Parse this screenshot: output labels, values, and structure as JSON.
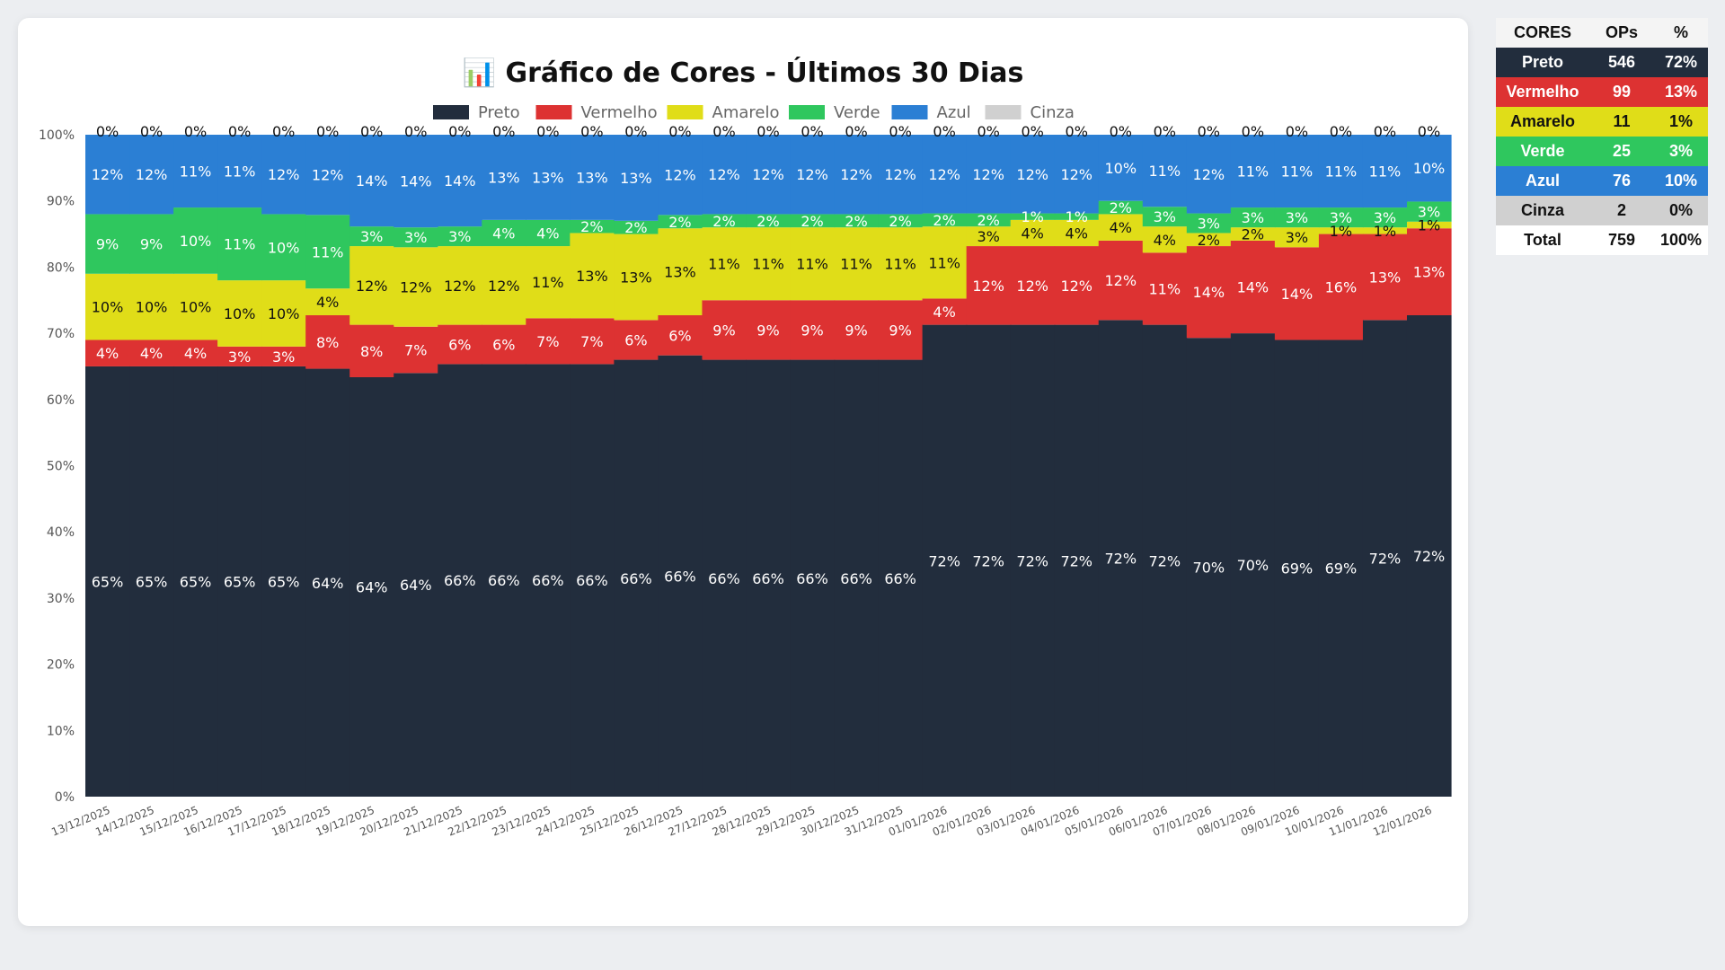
{
  "title": "📊 Gráfico de Cores - Últimos 30 Dias",
  "chart_data": {
    "type": "bar",
    "stacked": true,
    "title": "📊 Gráfico de Cores - Últimos 30 Dias",
    "xlabel": "",
    "ylabel": "",
    "ylim": [
      0,
      100
    ],
    "yticks": [
      "0%",
      "10%",
      "20%",
      "30%",
      "40%",
      "50%",
      "60%",
      "70%",
      "80%",
      "90%",
      "100%"
    ],
    "legend_position": "top",
    "categories": [
      "13/12/2025",
      "14/12/2025",
      "15/12/2025",
      "16/12/2025",
      "17/12/2025",
      "18/12/2025",
      "19/12/2025",
      "20/12/2025",
      "21/12/2025",
      "22/12/2025",
      "23/12/2025",
      "24/12/2025",
      "25/12/2025",
      "26/12/2025",
      "27/12/2025",
      "28/12/2025",
      "29/12/2025",
      "30/12/2025",
      "31/12/2025",
      "01/01/2026",
      "02/01/2026",
      "03/01/2026",
      "04/01/2026",
      "05/01/2026",
      "06/01/2026",
      "07/01/2026",
      "08/01/2026",
      "09/01/2026",
      "10/01/2026",
      "11/01/2026",
      "12/01/2026"
    ],
    "series": [
      {
        "name": "Preto",
        "color": "#222d3d",
        "label_color": "#ffffff",
        "values": [
          65,
          65,
          65,
          65,
          65,
          64,
          64,
          64,
          66,
          66,
          66,
          66,
          66,
          66,
          66,
          66,
          66,
          66,
          66,
          72,
          72,
          72,
          72,
          72,
          72,
          70,
          70,
          69,
          69,
          72,
          72
        ]
      },
      {
        "name": "Vermelho",
        "color": "#dd3232",
        "label_color": "#ffffff",
        "values": [
          4,
          4,
          4,
          3,
          3,
          8,
          8,
          7,
          6,
          6,
          7,
          7,
          6,
          6,
          9,
          9,
          9,
          9,
          9,
          4,
          12,
          12,
          12,
          12,
          11,
          14,
          14,
          14,
          16,
          13,
          13
        ]
      },
      {
        "name": "Amarelo",
        "color": "#e0dd18",
        "label_color": "#111111",
        "values": [
          10,
          10,
          10,
          10,
          10,
          4,
          12,
          12,
          12,
          12,
          11,
          13,
          13,
          13,
          11,
          11,
          11,
          11,
          11,
          11,
          3,
          4,
          4,
          4,
          4,
          2,
          2,
          3,
          1,
          1,
          1
        ]
      },
      {
        "name": "Verde",
        "color": "#2fc75e",
        "label_color": "#ffffff",
        "values": [
          9,
          9,
          10,
          11,
          10,
          11,
          3,
          3,
          3,
          4,
          4,
          2,
          2,
          2,
          2,
          2,
          2,
          2,
          2,
          2,
          2,
          1,
          1,
          2,
          3,
          3,
          3,
          3,
          3,
          3,
          3
        ]
      },
      {
        "name": "Azul",
        "color": "#2b7fd4",
        "label_color": "#ffffff",
        "values": [
          12,
          12,
          11,
          11,
          12,
          12,
          14,
          14,
          14,
          13,
          13,
          13,
          13,
          12,
          12,
          12,
          12,
          12,
          12,
          12,
          12,
          12,
          12,
          10,
          11,
          12,
          11,
          11,
          11,
          11,
          10
        ]
      },
      {
        "name": "Cinza",
        "color": "#d0d0d0",
        "label_color": "#111111",
        "values": [
          0,
          0,
          0,
          0,
          0,
          0,
          0,
          0,
          0,
          0,
          0,
          0,
          0,
          0,
          0,
          0,
          0,
          0,
          0,
          0,
          0,
          0,
          0,
          0,
          0,
          0,
          0,
          0,
          0,
          0,
          0
        ]
      }
    ]
  },
  "summary": {
    "headers": [
      "CORES",
      "OPs",
      "%"
    ],
    "rows": [
      {
        "name": "Preto",
        "ops": "546",
        "pct": "72%",
        "bg": "#222d3d",
        "fg": "#ffffff"
      },
      {
        "name": "Vermelho",
        "ops": "99",
        "pct": "13%",
        "bg": "#dd3232",
        "fg": "#ffffff"
      },
      {
        "name": "Amarelo",
        "ops": "11",
        "pct": "1%",
        "bg": "#e0dd18",
        "fg": "#111111"
      },
      {
        "name": "Verde",
        "ops": "25",
        "pct": "3%",
        "bg": "#2fc75e",
        "fg": "#ffffff"
      },
      {
        "name": "Azul",
        "ops": "76",
        "pct": "10%",
        "bg": "#2b7fd4",
        "fg": "#ffffff"
      },
      {
        "name": "Cinza",
        "ops": "2",
        "pct": "0%",
        "bg": "#d0d0d0",
        "fg": "#111111"
      }
    ],
    "total": {
      "name": "Total",
      "ops": "759",
      "pct": "100%"
    }
  }
}
